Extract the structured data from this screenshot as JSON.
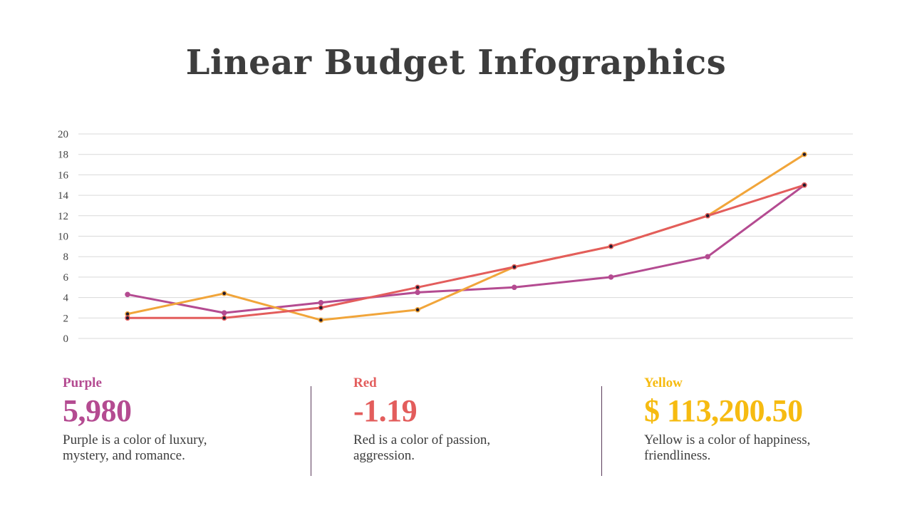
{
  "title": "Linear Budget Infographics",
  "colors": {
    "purple": "#b44b91",
    "red": "#e35d5c",
    "yellow": "#f1a53a",
    "yellow_text": "#f6bb11",
    "grid": "#d9d9d9",
    "point_dark": "#1f1a2e"
  },
  "chart_data": {
    "type": "line",
    "title": "Linear Budget Infographics",
    "xlabel": "",
    "ylabel": "",
    "ylim": [
      0,
      20
    ],
    "yticks": [
      0,
      2,
      4,
      6,
      8,
      10,
      12,
      14,
      16,
      18,
      20
    ],
    "x": [
      1,
      2,
      3,
      4,
      5,
      6,
      7,
      8
    ],
    "grid": true,
    "legend": "none",
    "series": [
      {
        "name": "Purple",
        "color": "#b44b91",
        "values": [
          4.3,
          2.5,
          3.5,
          4.5,
          5,
          6,
          8,
          15
        ]
      },
      {
        "name": "Red",
        "color": "#e35d5c",
        "values": [
          2,
          2,
          3,
          5,
          7,
          9,
          12,
          15
        ]
      },
      {
        "name": "Yellow",
        "color": "#f1a53a",
        "values": [
          2.4,
          4.4,
          1.8,
          2.8,
          7,
          9,
          12,
          18
        ]
      }
    ]
  },
  "stats": [
    {
      "label": "Purple",
      "value": "5,980",
      "description_line1": "Purple is a color of luxury,",
      "description_line2": "mystery, and romance."
    },
    {
      "label": "Red",
      "value": "-1.19",
      "description_line1": "Red is a color of passion,",
      "description_line2": "aggression."
    },
    {
      "label": "Yellow",
      "value": "$ 113,200.50",
      "description_line1": "Yellow is a color of happiness,",
      "description_line2": "friendliness."
    }
  ]
}
